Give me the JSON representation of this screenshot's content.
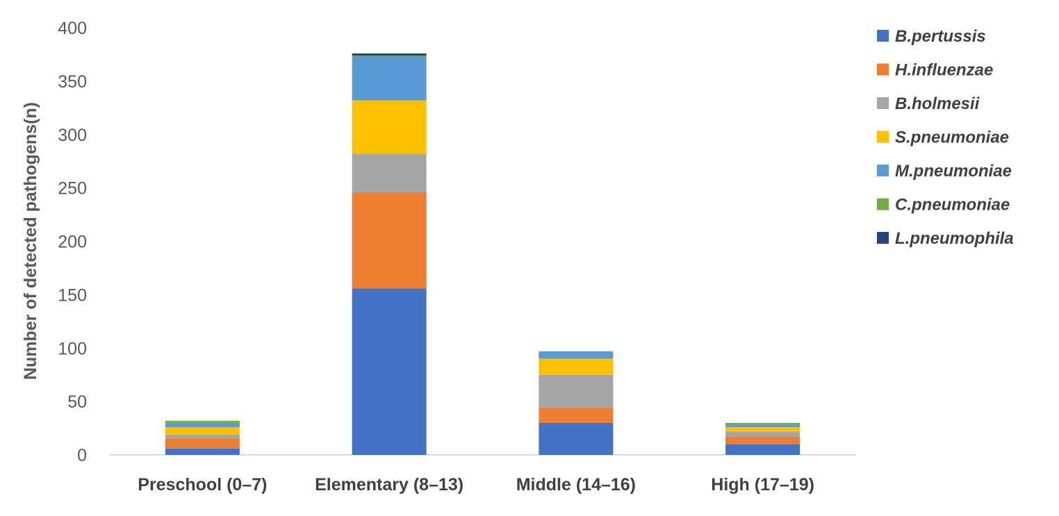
{
  "chart_data": {
    "type": "bar",
    "stacked": true,
    "title": "",
    "xlabel": "",
    "ylabel": "Number of detected pathogens(n)",
    "ylim": [
      0,
      400
    ],
    "yticks": [
      0,
      50,
      100,
      150,
      200,
      250,
      300,
      350,
      400
    ],
    "grid": false,
    "legend_position": "right",
    "categories": [
      "Preschool (0–7)",
      "Elementary (8–13)",
      "Middle (14–16)",
      "High (17–19)"
    ],
    "series": [
      {
        "name": "B.pertussis",
        "color": "#4472C4",
        "values": [
          6,
          156,
          30,
          10
        ]
      },
      {
        "name": "H.influenzae",
        "color": "#ED7D31",
        "values": [
          9,
          90,
          14,
          7
        ]
      },
      {
        "name": "B.holmesii",
        "color": "#A5A5A5",
        "values": [
          4,
          36,
          31,
          5
        ]
      },
      {
        "name": "S.pneumoniae",
        "color": "#FFC000",
        "values": [
          7,
          50,
          15,
          4
        ]
      },
      {
        "name": "M.pneumoniae",
        "color": "#5B9BD5",
        "values": [
          4,
          41,
          7,
          2
        ]
      },
      {
        "name": "C.pneumoniae",
        "color": "#70AD47",
        "values": [
          2,
          1,
          0,
          2
        ]
      },
      {
        "name": "L.pneumophila",
        "color": "#264478",
        "values": [
          0,
          2,
          0,
          0
        ]
      }
    ]
  }
}
